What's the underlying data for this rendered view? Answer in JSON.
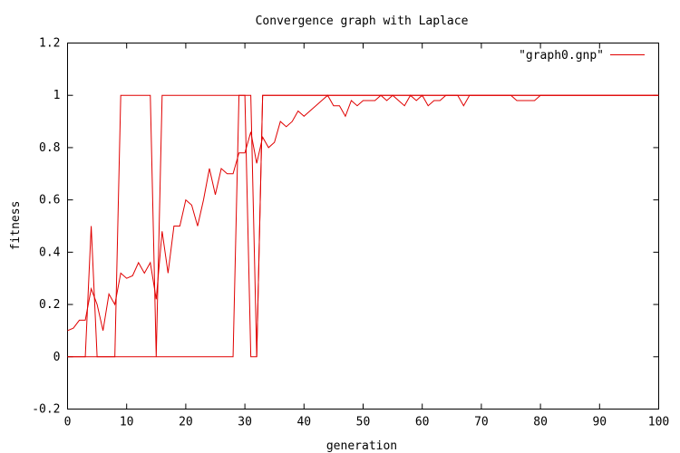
{
  "chart_data": {
    "type": "line",
    "title": "Convergence graph with Laplace",
    "xlabel": "generation",
    "ylabel": "fitness",
    "xlim": [
      0,
      100
    ],
    "ylim": [
      -0.2,
      1.2
    ],
    "x_ticks": [
      "0",
      "10",
      "20",
      "30",
      "40",
      "50",
      "60",
      "70",
      "80",
      "90",
      "100"
    ],
    "y_ticks": [
      "-0.2",
      "0",
      "0.2",
      "0.4",
      "0.6",
      "0.8",
      "1",
      "1.2"
    ],
    "grid": false,
    "legend": "top-right",
    "series": [
      {
        "name": "\"graph0.gnp\"",
        "color": "#e00000",
        "points": [
          [
            0,
            0.1
          ],
          [
            1,
            0.11
          ],
          [
            2,
            0.14
          ],
          [
            3,
            0.14
          ],
          [
            4,
            0.26
          ],
          [
            5,
            0.2
          ],
          [
            6,
            0.1
          ],
          [
            7,
            0.24
          ],
          [
            8,
            0.2
          ],
          [
            9,
            0.32
          ],
          [
            10,
            0.3
          ],
          [
            11,
            0.31
          ],
          [
            12,
            0.36
          ],
          [
            13,
            0.32
          ],
          [
            14,
            0.36
          ],
          [
            15,
            0.22
          ],
          [
            16,
            0.48
          ],
          [
            17,
            0.32
          ],
          [
            18,
            0.5
          ],
          [
            19,
            0.5
          ],
          [
            20,
            0.6
          ],
          [
            21,
            0.58
          ],
          [
            22,
            0.5
          ],
          [
            23,
            0.6
          ],
          [
            24,
            0.72
          ],
          [
            25,
            0.62
          ],
          [
            26,
            0.72
          ],
          [
            27,
            0.7
          ],
          [
            28,
            0.7
          ],
          [
            29,
            0.78
          ],
          [
            30,
            0.78
          ],
          [
            31,
            0.86
          ],
          [
            32,
            0.74
          ],
          [
            33,
            0.84
          ],
          [
            34,
            0.8
          ],
          [
            35,
            0.82
          ],
          [
            36,
            0.9
          ],
          [
            37,
            0.88
          ],
          [
            38,
            0.9
          ],
          [
            39,
            0.94
          ],
          [
            40,
            0.92
          ],
          [
            41,
            0.94
          ],
          [
            42,
            0.96
          ],
          [
            43,
            0.98
          ],
          [
            44,
            1.0
          ],
          [
            45,
            0.96
          ],
          [
            46,
            0.96
          ],
          [
            47,
            0.92
          ],
          [
            48,
            0.98
          ],
          [
            49,
            0.96
          ],
          [
            50,
            0.98
          ],
          [
            51,
            0.98
          ],
          [
            52,
            0.98
          ],
          [
            53,
            1.0
          ],
          [
            54,
            0.98
          ],
          [
            55,
            1.0
          ],
          [
            56,
            0.98
          ],
          [
            57,
            0.96
          ],
          [
            58,
            1.0
          ],
          [
            59,
            0.98
          ],
          [
            60,
            1.0
          ],
          [
            61,
            0.96
          ],
          [
            62,
            0.98
          ],
          [
            63,
            0.98
          ],
          [
            64,
            1.0
          ],
          [
            65,
            1.0
          ],
          [
            66,
            1.0
          ],
          [
            67,
            0.96
          ],
          [
            68,
            1.0
          ],
          [
            69,
            1.0
          ],
          [
            70,
            1.0
          ],
          [
            71,
            1.0
          ],
          [
            72,
            1.0
          ],
          [
            73,
            1.0
          ],
          [
            74,
            1.0
          ],
          [
            75,
            1.0
          ],
          [
            76,
            0.98
          ],
          [
            77,
            0.98
          ],
          [
            78,
            0.98
          ],
          [
            79,
            0.98
          ],
          [
            80,
            1.0
          ],
          [
            81,
            1.0
          ],
          [
            82,
            1.0
          ],
          [
            83,
            1.0
          ],
          [
            84,
            1.0
          ],
          [
            85,
            1.0
          ],
          [
            86,
            1.0
          ],
          [
            87,
            1.0
          ],
          [
            88,
            1.0
          ],
          [
            89,
            1.0
          ],
          [
            90,
            1.0
          ],
          [
            91,
            1.0
          ],
          [
            92,
            1.0
          ],
          [
            93,
            1.0
          ],
          [
            94,
            1.0
          ],
          [
            95,
            1.0
          ],
          [
            96,
            1.0
          ],
          [
            97,
            1.0
          ],
          [
            98,
            1.0
          ],
          [
            99,
            1.0
          ],
          [
            100,
            1.0
          ]
        ]
      },
      {
        "color": "#e00000",
        "points": [
          [
            0,
            0
          ],
          [
            1,
            0
          ],
          [
            2,
            0
          ],
          [
            3,
            0
          ],
          [
            4,
            0.5
          ],
          [
            5,
            0
          ],
          [
            6,
            0
          ],
          [
            7,
            0
          ],
          [
            8,
            0
          ],
          [
            9,
            1.0
          ],
          [
            10,
            1.0
          ],
          [
            11,
            1.0
          ],
          [
            12,
            1.0
          ],
          [
            13,
            1.0
          ],
          [
            14,
            1.0
          ],
          [
            15,
            0
          ],
          [
            16,
            1.0
          ],
          [
            17,
            1.0
          ],
          [
            18,
            1.0
          ],
          [
            19,
            1.0
          ],
          [
            20,
            1.0
          ],
          [
            21,
            1.0
          ],
          [
            22,
            1.0
          ],
          [
            23,
            1.0
          ],
          [
            24,
            1.0
          ],
          [
            25,
            1.0
          ],
          [
            26,
            1.0
          ],
          [
            27,
            1.0
          ],
          [
            28,
            1.0
          ],
          [
            29,
            1.0
          ],
          [
            30,
            1.0
          ],
          [
            31,
            1.0
          ],
          [
            32,
            0
          ],
          [
            33,
            1.0
          ],
          [
            34,
            1.0
          ],
          [
            35,
            1.0
          ],
          [
            36,
            1.0
          ],
          [
            37,
            1.0
          ],
          [
            38,
            1.0
          ],
          [
            39,
            1.0
          ],
          [
            40,
            1.0
          ],
          [
            41,
            1.0
          ],
          [
            42,
            1.0
          ],
          [
            43,
            1.0
          ],
          [
            44,
            1.0
          ],
          [
            45,
            1.0
          ],
          [
            46,
            1.0
          ],
          [
            47,
            1.0
          ],
          [
            48,
            1.0
          ],
          [
            49,
            1.0
          ],
          [
            50,
            1.0
          ],
          [
            51,
            1.0
          ],
          [
            52,
            1.0
          ],
          [
            53,
            1.0
          ],
          [
            54,
            1.0
          ],
          [
            55,
            1.0
          ],
          [
            56,
            1.0
          ],
          [
            57,
            1.0
          ],
          [
            58,
            1.0
          ],
          [
            59,
            1.0
          ],
          [
            60,
            1.0
          ],
          [
            61,
            1.0
          ],
          [
            62,
            1.0
          ],
          [
            63,
            1.0
          ],
          [
            64,
            1.0
          ],
          [
            65,
            1.0
          ],
          [
            66,
            1.0
          ],
          [
            67,
            1.0
          ],
          [
            68,
            1.0
          ],
          [
            69,
            1.0
          ],
          [
            70,
            1.0
          ],
          [
            71,
            1.0
          ],
          [
            72,
            1.0
          ],
          [
            73,
            1.0
          ],
          [
            74,
            1.0
          ],
          [
            75,
            1.0
          ],
          [
            76,
            1.0
          ],
          [
            77,
            1.0
          ],
          [
            78,
            1.0
          ],
          [
            79,
            1.0
          ],
          [
            80,
            1.0
          ],
          [
            81,
            1.0
          ],
          [
            82,
            1.0
          ],
          [
            83,
            1.0
          ],
          [
            84,
            1.0
          ],
          [
            85,
            1.0
          ],
          [
            86,
            1.0
          ],
          [
            87,
            1.0
          ],
          [
            88,
            1.0
          ],
          [
            89,
            1.0
          ],
          [
            90,
            1.0
          ],
          [
            91,
            1.0
          ],
          [
            92,
            1.0
          ],
          [
            93,
            1.0
          ],
          [
            94,
            1.0
          ],
          [
            95,
            1.0
          ],
          [
            96,
            1.0
          ],
          [
            97,
            1.0
          ],
          [
            98,
            1.0
          ],
          [
            99,
            1.0
          ],
          [
            100,
            1.0
          ]
        ]
      },
      {
        "color": "#e00000",
        "points": [
          [
            0,
            0
          ],
          [
            1,
            0
          ],
          [
            2,
            0
          ],
          [
            3,
            0
          ],
          [
            4,
            0
          ],
          [
            5,
            0
          ],
          [
            6,
            0
          ],
          [
            7,
            0
          ],
          [
            8,
            0
          ],
          [
            9,
            0
          ],
          [
            10,
            0
          ],
          [
            11,
            0
          ],
          [
            12,
            0
          ],
          [
            13,
            0
          ],
          [
            14,
            0
          ],
          [
            15,
            0
          ],
          [
            16,
            0
          ],
          [
            17,
            0
          ],
          [
            18,
            0
          ],
          [
            19,
            0
          ],
          [
            20,
            0
          ],
          [
            21,
            0
          ],
          [
            22,
            0
          ],
          [
            23,
            0
          ],
          [
            24,
            0
          ],
          [
            25,
            0
          ],
          [
            26,
            0
          ],
          [
            27,
            0
          ],
          [
            28,
            0
          ],
          [
            29,
            1.0
          ],
          [
            30,
            1.0
          ],
          [
            31,
            0
          ],
          [
            32,
            0
          ],
          [
            33,
            1.0
          ],
          [
            34,
            1.0
          ],
          [
            35,
            1.0
          ],
          [
            36,
            1.0
          ],
          [
            37,
            1.0
          ],
          [
            38,
            1.0
          ],
          [
            39,
            1.0
          ],
          [
            40,
            1.0
          ],
          [
            41,
            1.0
          ],
          [
            42,
            1.0
          ],
          [
            43,
            1.0
          ],
          [
            44,
            1.0
          ],
          [
            45,
            1.0
          ],
          [
            46,
            1.0
          ],
          [
            47,
            1.0
          ],
          [
            48,
            1.0
          ],
          [
            49,
            1.0
          ],
          [
            50,
            1.0
          ],
          [
            51,
            1.0
          ],
          [
            52,
            1.0
          ],
          [
            53,
            1.0
          ],
          [
            54,
            1.0
          ],
          [
            55,
            1.0
          ],
          [
            56,
            1.0
          ],
          [
            57,
            1.0
          ],
          [
            58,
            1.0
          ],
          [
            59,
            1.0
          ],
          [
            60,
            1.0
          ],
          [
            61,
            1.0
          ],
          [
            62,
            1.0
          ],
          [
            63,
            1.0
          ],
          [
            64,
            1.0
          ],
          [
            65,
            1.0
          ],
          [
            66,
            1.0
          ],
          [
            67,
            1.0
          ],
          [
            68,
            1.0
          ],
          [
            69,
            1.0
          ],
          [
            70,
            1.0
          ],
          [
            71,
            1.0
          ],
          [
            72,
            1.0
          ],
          [
            73,
            1.0
          ],
          [
            74,
            1.0
          ],
          [
            75,
            1.0
          ],
          [
            76,
            1.0
          ],
          [
            77,
            1.0
          ],
          [
            78,
            1.0
          ],
          [
            79,
            1.0
          ],
          [
            80,
            1.0
          ],
          [
            81,
            1.0
          ],
          [
            82,
            1.0
          ],
          [
            83,
            1.0
          ],
          [
            84,
            1.0
          ],
          [
            85,
            1.0
          ],
          [
            86,
            1.0
          ],
          [
            87,
            1.0
          ],
          [
            88,
            1.0
          ],
          [
            89,
            1.0
          ],
          [
            90,
            1.0
          ],
          [
            91,
            1.0
          ],
          [
            92,
            1.0
          ],
          [
            93,
            1.0
          ],
          [
            94,
            1.0
          ],
          [
            95,
            1.0
          ],
          [
            96,
            1.0
          ],
          [
            97,
            1.0
          ],
          [
            98,
            1.0
          ],
          [
            99,
            1.0
          ],
          [
            100,
            1.0
          ]
        ]
      }
    ]
  }
}
